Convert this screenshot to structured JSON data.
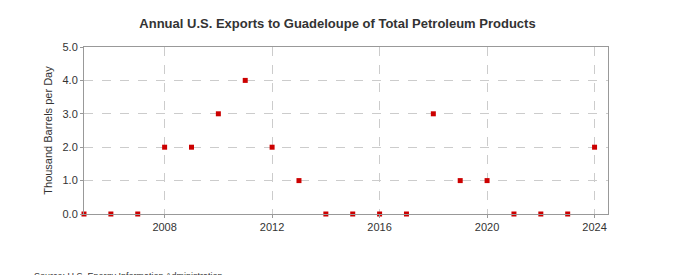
{
  "chart_data": {
    "type": "scatter",
    "title": "Annual U.S. Exports to Guadeloupe of Total Petroleum Products",
    "y_label": "Thousand Barrels per Day",
    "annotations": [
      "Source: U.S. Energy Information Administration"
    ],
    "x": [
      2005,
      2006,
      2007,
      2008,
      2009,
      2010,
      2011,
      2012,
      2013,
      2014,
      2015,
      2016,
      2017,
      2018,
      2019,
      2020,
      2021,
      2022,
      2023,
      2024
    ],
    "values": [
      0,
      0,
      0,
      2,
      2,
      3,
      4,
      2,
      1,
      0,
      0,
      0,
      0,
      3,
      1,
      1,
      0,
      0,
      0,
      2
    ],
    "color": "#cc0000",
    "marker": "square",
    "xlim": [
      2005,
      2024.5
    ],
    "xticks": [
      2008,
      2012,
      2016,
      2020,
      2024
    ],
    "ylim": [
      0,
      5
    ],
    "yticks": [
      {
        "value": 0,
        "label": "0.0"
      },
      {
        "value": 1,
        "label": "1.0"
      },
      {
        "value": 2,
        "label": "2.0"
      },
      {
        "value": 3,
        "label": "3.0"
      },
      {
        "value": 4,
        "label": "4.0"
      },
      {
        "value": 5,
        "label": "5.0"
      }
    ],
    "grid": true
  }
}
